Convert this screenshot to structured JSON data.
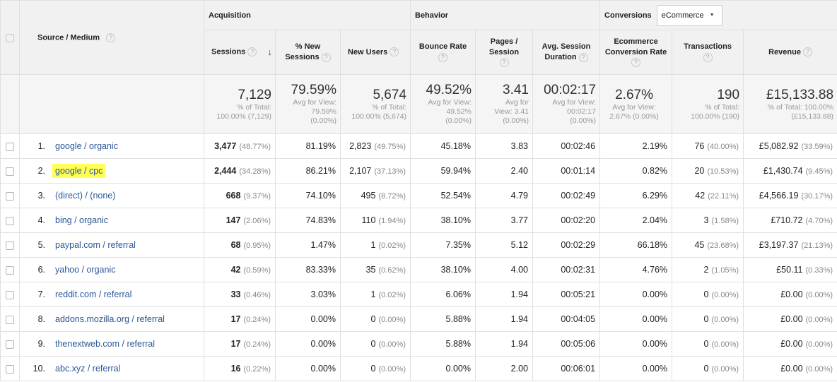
{
  "header": {
    "source_medium": "Source / Medium",
    "groups": {
      "acquisition": "Acquisition",
      "behavior": "Behavior",
      "conversions": "Conversions"
    },
    "conversions_dropdown": "eCommerce",
    "columns": {
      "sessions": "Sessions",
      "new_sessions": "% New Sessions",
      "new_users": "New Users",
      "bounce_rate": "Bounce Rate",
      "pages_session": "Pages / Session",
      "avg_duration": "Avg. Session Duration",
      "ecom_rate": "Ecommerce Conversion Rate",
      "transactions": "Transactions",
      "revenue": "Revenue"
    },
    "help_glyph": "?",
    "sort_glyph": "↓"
  },
  "totals": {
    "sessions": {
      "value": "7,129",
      "sub1": "% of Total:",
      "sub2": "100.00% (7,129)"
    },
    "new_sessions": {
      "value": "79.59%",
      "sub1": "Avg for View:",
      "sub2": "79.59%",
      "sub3": "(0.00%)"
    },
    "new_users": {
      "value": "5,674",
      "sub1": "% of Total:",
      "sub2": "100.00% (5,674)"
    },
    "bounce_rate": {
      "value": "49.52%",
      "sub1": "Avg for View:",
      "sub2": "49.52%",
      "sub3": "(0.00%)"
    },
    "pages_session": {
      "value": "3.41",
      "sub1": "Avg for",
      "sub2": "View: 3.41",
      "sub3": "(0.00%)"
    },
    "avg_duration": {
      "value": "00:02:17",
      "sub1": "Avg for View:",
      "sub2": "00:02:17",
      "sub3": "(0.00%)"
    },
    "ecom_rate": {
      "value": "2.67%",
      "sub1": "Avg for View:",
      "sub2": "2.67% (0.00%)"
    },
    "transactions": {
      "value": "190",
      "sub1": "% of Total:",
      "sub2": "100.00% (190)"
    },
    "revenue": {
      "value": "£15,133.88",
      "sub1": "% of Total: 100.00%",
      "sub2": "(£15,133.88)"
    }
  },
  "rows": [
    {
      "idx": "1.",
      "source": "google / organic",
      "sessions": "3,477",
      "sessions_pct": "(48.77%)",
      "new_sessions": "81.19%",
      "new_users": "2,823",
      "new_users_pct": "(49.75%)",
      "bounce": "45.18%",
      "pages": "3.83",
      "duration": "00:02:46",
      "ecom": "2.19%",
      "trans": "76",
      "trans_pct": "(40.00%)",
      "revenue": "£5,082.92",
      "revenue_pct": "(33.59%)"
    },
    {
      "idx": "2.",
      "source": "google / cpc",
      "sessions": "2,444",
      "sessions_pct": "(34.28%)",
      "new_sessions": "86.21%",
      "new_users": "2,107",
      "new_users_pct": "(37.13%)",
      "bounce": "59.94%",
      "pages": "2.40",
      "duration": "00:01:14",
      "ecom": "0.82%",
      "trans": "20",
      "trans_pct": "(10.53%)",
      "revenue": "£1,430.74",
      "revenue_pct": "(9.45%)"
    },
    {
      "idx": "3.",
      "source": "(direct) / (none)",
      "sessions": "668",
      "sessions_pct": "(9.37%)",
      "new_sessions": "74.10%",
      "new_users": "495",
      "new_users_pct": "(8.72%)",
      "bounce": "52.54%",
      "pages": "4.79",
      "duration": "00:02:49",
      "ecom": "6.29%",
      "trans": "42",
      "trans_pct": "(22.11%)",
      "revenue": "£4,566.19",
      "revenue_pct": "(30.17%)"
    },
    {
      "idx": "4.",
      "source": "bing / organic",
      "sessions": "147",
      "sessions_pct": "(2.06%)",
      "new_sessions": "74.83%",
      "new_users": "110",
      "new_users_pct": "(1.94%)",
      "bounce": "38.10%",
      "pages": "3.77",
      "duration": "00:02:20",
      "ecom": "2.04%",
      "trans": "3",
      "trans_pct": "(1.58%)",
      "revenue": "£710.72",
      "revenue_pct": "(4.70%)"
    },
    {
      "idx": "5.",
      "source": "paypal.com / referral",
      "sessions": "68",
      "sessions_pct": "(0.95%)",
      "new_sessions": "1.47%",
      "new_users": "1",
      "new_users_pct": "(0.02%)",
      "bounce": "7.35%",
      "pages": "5.12",
      "duration": "00:02:29",
      "ecom": "66.18%",
      "trans": "45",
      "trans_pct": "(23.68%)",
      "revenue": "£3,197.37",
      "revenue_pct": "(21.13%)"
    },
    {
      "idx": "6.",
      "source": "yahoo / organic",
      "sessions": "42",
      "sessions_pct": "(0.59%)",
      "new_sessions": "83.33%",
      "new_users": "35",
      "new_users_pct": "(0.62%)",
      "bounce": "38.10%",
      "pages": "4.00",
      "duration": "00:02:31",
      "ecom": "4.76%",
      "trans": "2",
      "trans_pct": "(1.05%)",
      "revenue": "£50.11",
      "revenue_pct": "(0.33%)"
    },
    {
      "idx": "7.",
      "source": "reddit.com / referral",
      "sessions": "33",
      "sessions_pct": "(0.46%)",
      "new_sessions": "3.03%",
      "new_users": "1",
      "new_users_pct": "(0.02%)",
      "bounce": "6.06%",
      "pages": "1.94",
      "duration": "00:05:21",
      "ecom": "0.00%",
      "trans": "0",
      "trans_pct": "(0.00%)",
      "revenue": "£0.00",
      "revenue_pct": "(0.00%)"
    },
    {
      "idx": "8.",
      "source": "addons.mozilla.org / referral",
      "sessions": "17",
      "sessions_pct": "(0.24%)",
      "new_sessions": "0.00%",
      "new_users": "0",
      "new_users_pct": "(0.00%)",
      "bounce": "5.88%",
      "pages": "1.94",
      "duration": "00:04:05",
      "ecom": "0.00%",
      "trans": "0",
      "trans_pct": "(0.00%)",
      "revenue": "£0.00",
      "revenue_pct": "(0.00%)"
    },
    {
      "idx": "9.",
      "source": "thenextweb.com / referral",
      "sessions": "17",
      "sessions_pct": "(0.24%)",
      "new_sessions": "0.00%",
      "new_users": "0",
      "new_users_pct": "(0.00%)",
      "bounce": "5.88%",
      "pages": "1.94",
      "duration": "00:05:06",
      "ecom": "0.00%",
      "trans": "0",
      "trans_pct": "(0.00%)",
      "revenue": "£0.00",
      "revenue_pct": "(0.00%)"
    },
    {
      "idx": "10.",
      "source": "abc.xyz / referral",
      "sessions": "16",
      "sessions_pct": "(0.22%)",
      "new_sessions": "0.00%",
      "new_users": "0",
      "new_users_pct": "(0.00%)",
      "bounce": "0.00%",
      "pages": "2.00",
      "duration": "00:06:01",
      "ecom": "0.00%",
      "trans": "0",
      "trans_pct": "(0.00%)",
      "revenue": "£0.00",
      "revenue_pct": "(0.00%)"
    }
  ],
  "highlight_color": "#ffff55",
  "link_color": "#2b5797"
}
